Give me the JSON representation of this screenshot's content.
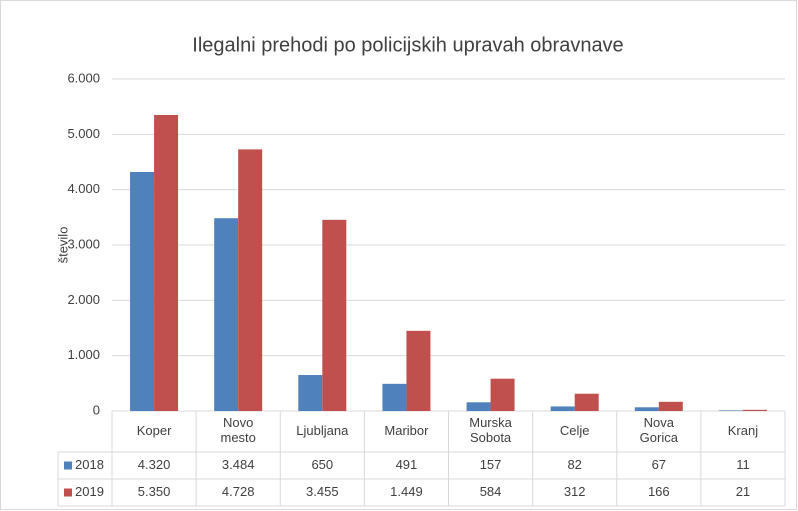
{
  "chart_data": {
    "type": "bar",
    "title": "Ilegalni prehodi po policijskih upravah obravnave",
    "y_label": "število",
    "categories": [
      "Koper",
      "Novo mesto",
      "Ljubljana",
      "Maribor",
      "Murska Sobota",
      "Celje",
      "Nova Gorica",
      "Kranj"
    ],
    "series": [
      {
        "name": "2018",
        "color": "#4f81bd",
        "values": [
          4320,
          3484,
          650,
          491,
          157,
          82,
          67,
          11
        ],
        "value_labels": [
          "4.320",
          "3.484",
          "650",
          "491",
          "157",
          "82",
          "67",
          "11"
        ]
      },
      {
        "name": "2019",
        "color": "#c0504d",
        "values": [
          5350,
          4728,
          3455,
          1449,
          584,
          312,
          166,
          21
        ],
        "value_labels": [
          "5.350",
          "4.728",
          "3.455",
          "1.449",
          "584",
          "312",
          "166",
          "21"
        ]
      }
    ],
    "ylim": [
      0,
      6000
    ],
    "yticks": [
      0,
      {
        "value": 1000,
        "label": "1.000"
      },
      {
        "value": 2000,
        "label": "2.000"
      },
      {
        "value": 3000,
        "label": "3.000"
      },
      {
        "value": 4000,
        "label": "4.000"
      },
      {
        "value": 5000,
        "label": "5.000"
      },
      {
        "value": 6000,
        "label": "6.000"
      }
    ],
    "grid": true
  }
}
